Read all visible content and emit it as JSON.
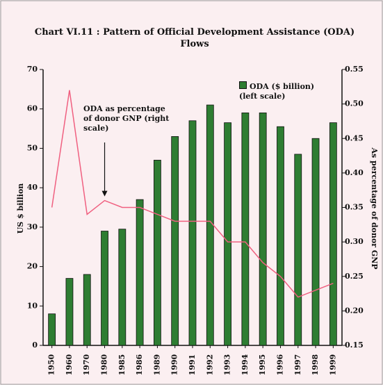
{
  "chart_data": {
    "type": "bar",
    "title": "Chart VI.11 : Pattern of Official Development Assistance (ODA) Flows",
    "y_label": "US $ billion",
    "y2_label": "As percentage of donor GNP",
    "categories": [
      "1950",
      "1960",
      "1970",
      "1980",
      "1985",
      "1986",
      "1989",
      "1990",
      "1991",
      "1992",
      "1993",
      "1994",
      "1995",
      "1996",
      "1997",
      "1998",
      "1999"
    ],
    "series": [
      {
        "name": "ODA ($ billion) (left scale)",
        "type": "bar",
        "color": "#2e7d32",
        "values": [
          8,
          17,
          18,
          29,
          29.5,
          37,
          47,
          53,
          57,
          61,
          56.5,
          59,
          59,
          55.5,
          48.5,
          52.5,
          56.5
        ]
      },
      {
        "name": "ODA as percentage of donor GNP (right scale)",
        "type": "line",
        "axis": "y2",
        "color": "#f06080",
        "values": [
          0.35,
          0.52,
          0.34,
          0.36,
          0.35,
          0.35,
          0.34,
          0.33,
          0.33,
          0.33,
          0.3,
          0.3,
          0.27,
          0.25,
          0.22,
          0.23,
          0.24
        ]
      }
    ],
    "ylim": [
      0,
      70
    ],
    "yticks": [
      0,
      10,
      20,
      30,
      40,
      50,
      60,
      70
    ],
    "y2lim": [
      0.15,
      0.55
    ],
    "y2ticks": [
      0.15,
      {
        "value": 0.2,
        "label": "0.20"
      },
      0.25,
      {
        "value": 0.3,
        "label": "0.30"
      },
      0.35,
      {
        "value": 0.4,
        "label": "0.40"
      },
      0.45,
      {
        "value": 0.5,
        "label": "0.50"
      },
      0.55
    ]
  }
}
